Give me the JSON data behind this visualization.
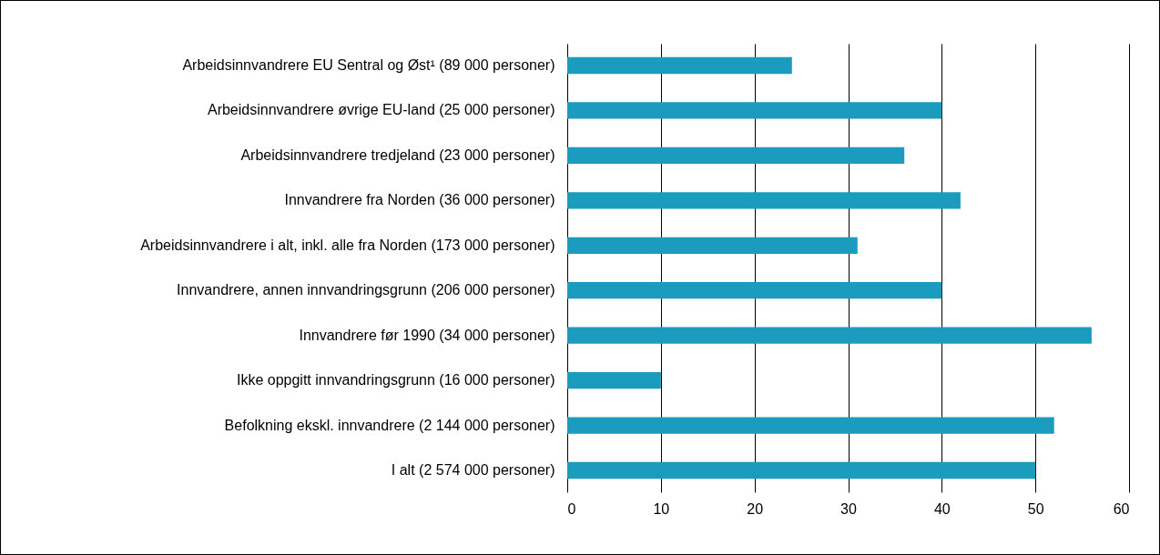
{
  "chart_data": {
    "type": "bar",
    "orientation": "horizontal",
    "categories": [
      "Arbeidsinnvandrere EU Sentral og Øst¹ (89 000 personer)",
      "Arbeidsinnvandrere øvrige EU-land (25 000 personer)",
      "Arbeidsinnvandrere tredjeland (23 000 personer)",
      "Innvandrere fra Norden (36 000 personer)",
      "Arbeidsinnvandrere i alt, inkl. alle fra Norden (173 000 personer)",
      "Innvandrere, annen innvandringsgrunn (206 000 personer)",
      "Innvandrere før 1990 (34 000 personer)",
      "Ikke oppgitt innvandringsgrunn (16 000 personer)",
      "Befolkning ekskl. innvandrere (2 144 000 personer)",
      "I alt (2 574 000 personer)"
    ],
    "values": [
      24,
      40,
      36,
      42,
      31,
      40,
      56,
      10,
      52,
      50
    ],
    "color": "#1b9bbd",
    "xlim": [
      0,
      60
    ],
    "xticks": [
      0,
      10,
      20,
      30,
      40,
      50,
      60
    ],
    "grid": "x"
  }
}
